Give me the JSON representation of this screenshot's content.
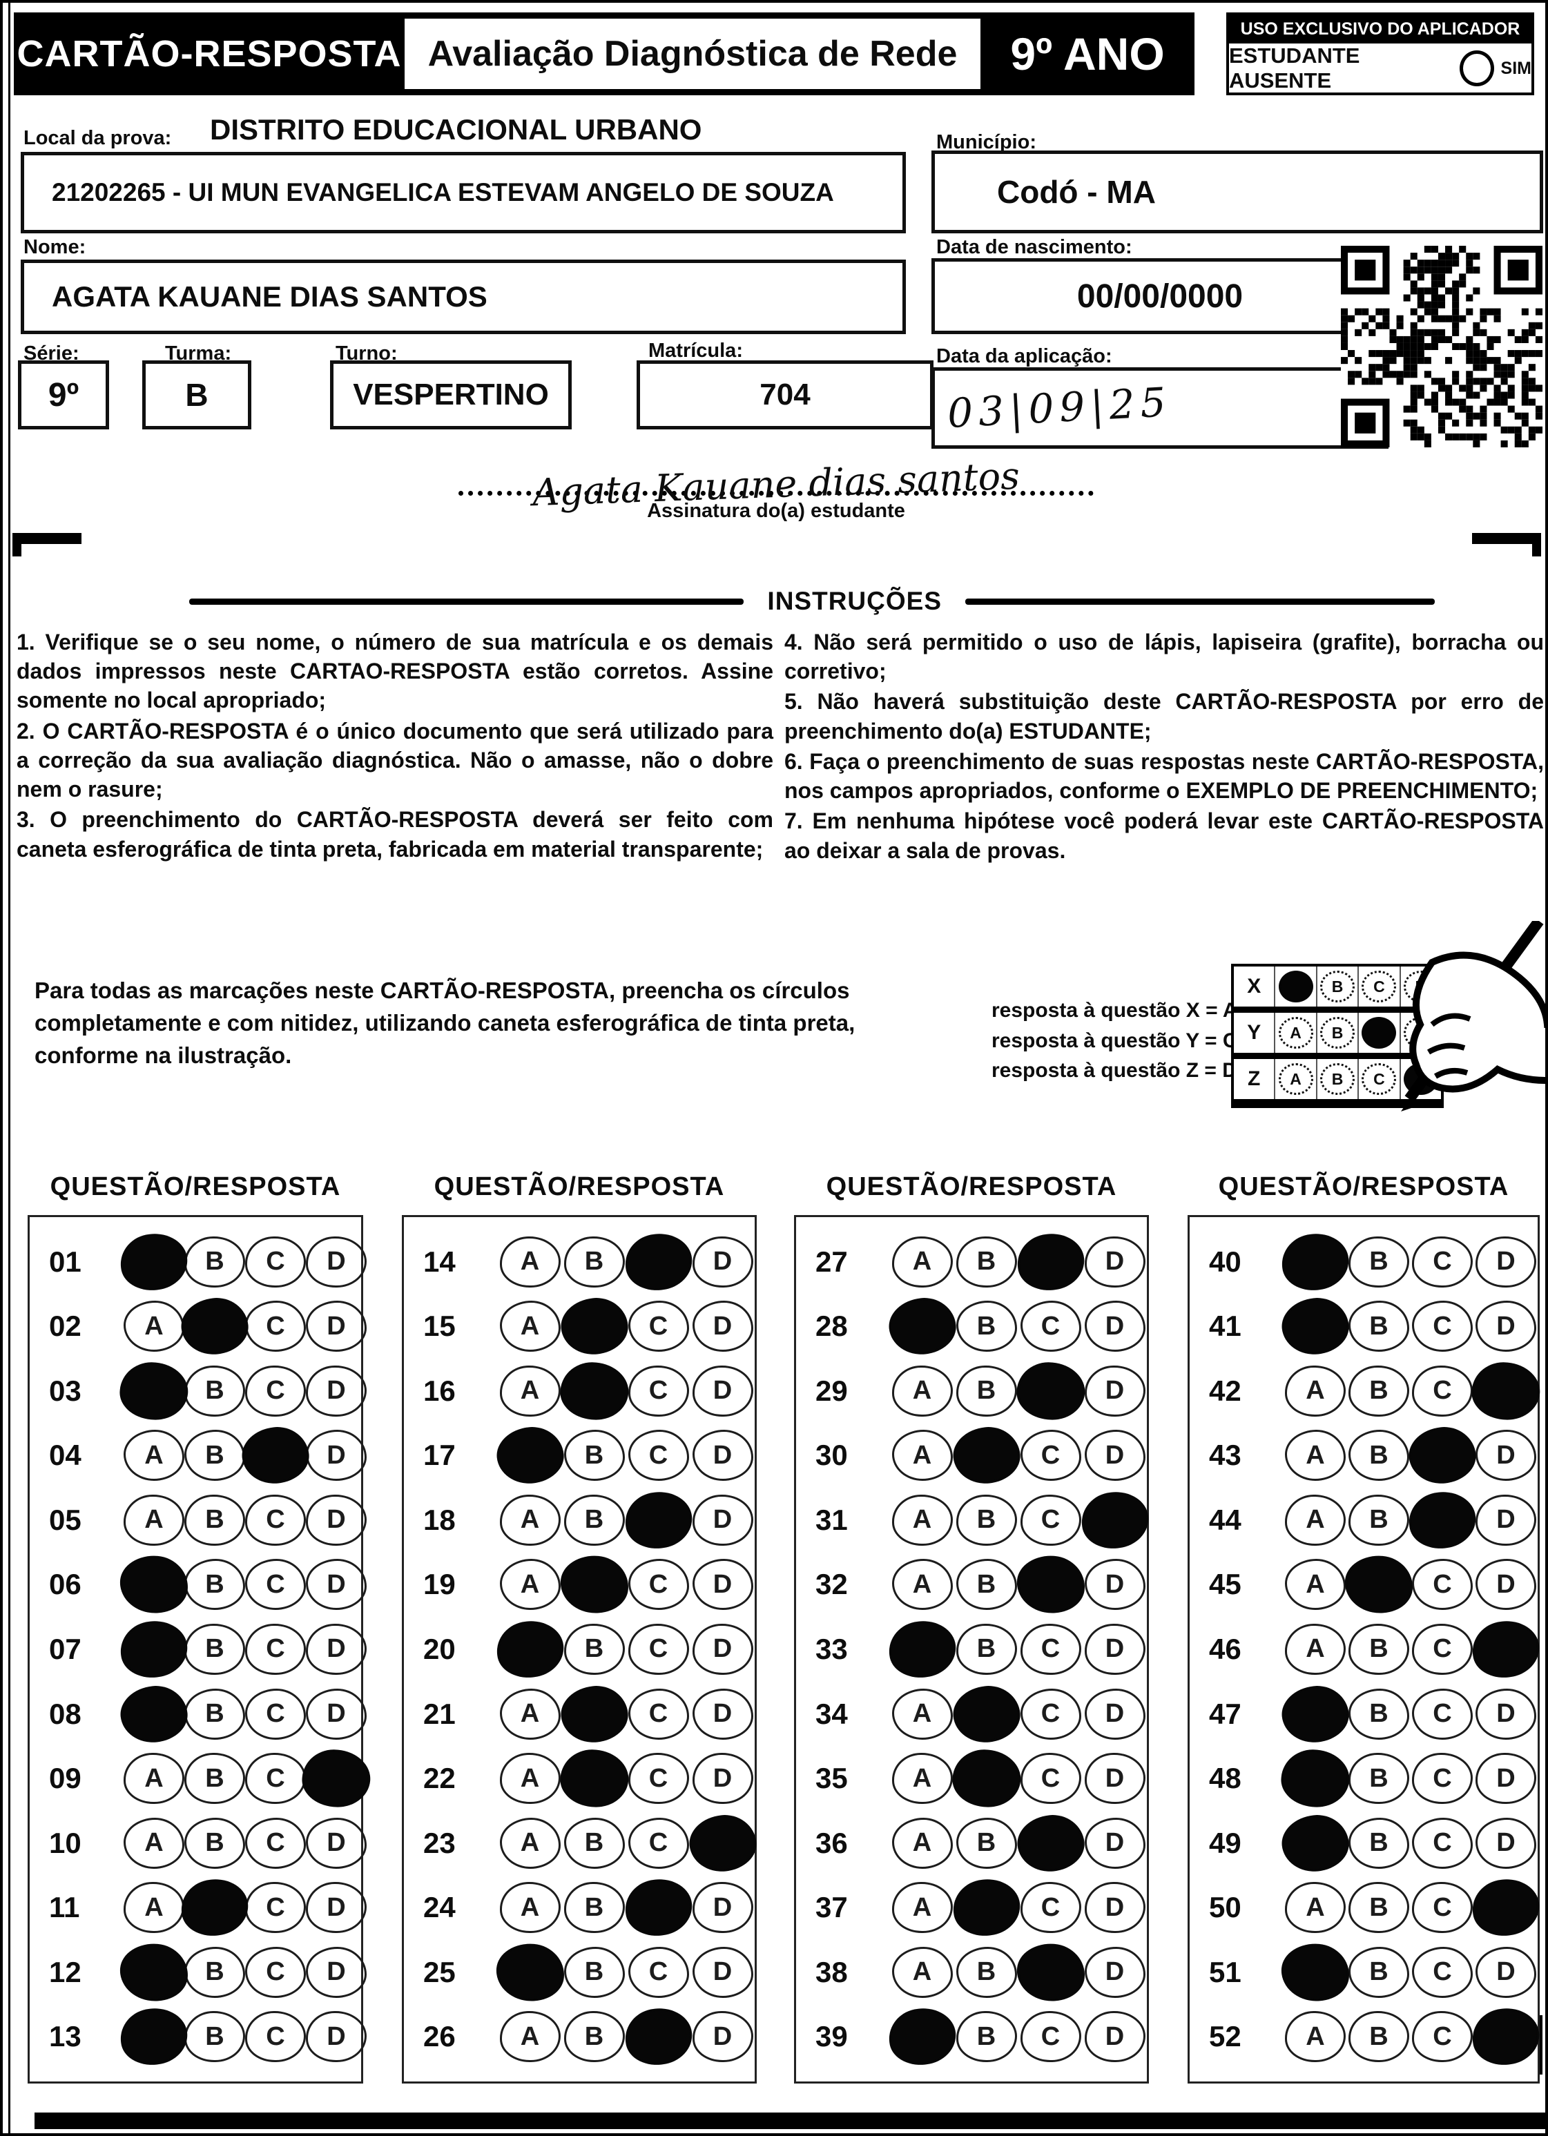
{
  "header": {
    "title": "CARTÃO-RESPOSTA",
    "subtitle": "Avaliação Diagnóstica de Rede",
    "grade": "9º ANO",
    "aplicador_title": "USO EXCLUSIVO DO APLICADOR",
    "absent_label": "ESTUDANTE AUSENTE",
    "absent_option": "SIM"
  },
  "fields": {
    "local_label": "Local da prova:",
    "district": "DISTRITO EDUCACIONAL URBANO",
    "school": "21202265 - UI MUN EVANGELICA ESTEVAM ANGELO DE SOUZA",
    "municipio_label": "Município:",
    "municipio": "Codó - MA",
    "nome_label": "Nome:",
    "nome": "AGATA KAUANE DIAS SANTOS",
    "nascimento_label": "Data de nascimento:",
    "nascimento": "00/00/0000",
    "serie_label": "Série:",
    "serie": "9º",
    "turma_label": "Turma:",
    "turma": "B",
    "turno_label": "Turno:",
    "turno": "VESPERTINO",
    "matricula_label": "Matrícula:",
    "matricula": "704",
    "aplicacao_label": "Data da aplicação:",
    "aplicacao_handwritten": "03|09|25",
    "signature_handwritten": "Agata Kauane dias santos",
    "signature_label": "Assinatura do(a) estudante"
  },
  "instructions": {
    "title": "INSTRUÇÕES",
    "left": [
      "1. Verifique se o seu nome, o número de sua matrícula e os demais dados impressos neste CARTAO-RESPOSTA estão corretos. Assine somente no local apropriado;",
      "2. O CARTÃO-RESPOSTA é o único documento que será utilizado para a correção da sua avaliação diagnóstica. Não o amasse, não o dobre nem o rasure;",
      "3. O preenchimento do CARTÃO-RESPOSTA deverá ser feito com caneta esferográfica de tinta preta, fabricada em material transparente;"
    ],
    "right": [
      "4. Não será permitido o uso de lápis, lapiseira (grafite), borracha ou corretivo;",
      "5. Não haverá substituição deste CARTÃO-RESPOSTA por erro de preenchimento do(a) ESTUDANTE;",
      "6. Faça o preenchimento de suas respostas neste CARTÃO-RESPOSTA, nos campos apropriados, conforme o EXEMPLO DE PREENCHIMENTO;",
      "7. Em nenhuma hipótese você poderá levar este CARTÃO-RESPOSTA ao deixar a sala de provas."
    ]
  },
  "example": {
    "text": "Para todas as marcações neste CARTÃO-RESPOSTA, preencha os círculos completamente e com nitidez, utilizando caneta esferográfica de tinta preta, conforme na ilustração.",
    "legend": [
      "resposta à questão X = A",
      "resposta à questão Y = C",
      "resposta à questão Z = D"
    ],
    "grid": [
      {
        "label": "X",
        "options": [
          "A",
          "B",
          "C",
          "D"
        ],
        "marked": "A"
      },
      {
        "label": "Y",
        "options": [
          "A",
          "B",
          "C",
          "D"
        ],
        "marked": "C"
      },
      {
        "label": "Z",
        "options": [
          "A",
          "B",
          "C",
          "D"
        ],
        "marked": "D"
      }
    ],
    "pen_icon": "pen-in-hand"
  },
  "answers": {
    "column_header": "QUESTÃO/RESPOSTA",
    "options": [
      "A",
      "B",
      "C",
      "D"
    ],
    "columns": [
      {
        "rows": [
          {
            "num": "01",
            "marked": "A"
          },
          {
            "num": "02",
            "marked": "B"
          },
          {
            "num": "03",
            "marked": "A"
          },
          {
            "num": "04",
            "marked": "C"
          },
          {
            "num": "05",
            "marked": ""
          },
          {
            "num": "06",
            "marked": "A"
          },
          {
            "num": "07",
            "marked": "A"
          },
          {
            "num": "08",
            "marked": "A"
          },
          {
            "num": "09",
            "marked": "D"
          },
          {
            "num": "10",
            "marked": ""
          },
          {
            "num": "11",
            "marked": "B"
          },
          {
            "num": "12",
            "marked": "A"
          },
          {
            "num": "13",
            "marked": "A"
          }
        ]
      },
      {
        "rows": [
          {
            "num": "14",
            "marked": "C"
          },
          {
            "num": "15",
            "marked": "B"
          },
          {
            "num": "16",
            "marked": "B"
          },
          {
            "num": "17",
            "marked": "A"
          },
          {
            "num": "18",
            "marked": "C"
          },
          {
            "num": "19",
            "marked": "B"
          },
          {
            "num": "20",
            "marked": "A"
          },
          {
            "num": "21",
            "marked": "B"
          },
          {
            "num": "22",
            "marked": "B"
          },
          {
            "num": "23",
            "marked": "D"
          },
          {
            "num": "24",
            "marked": "C"
          },
          {
            "num": "25",
            "marked": "A"
          },
          {
            "num": "26",
            "marked": "C"
          }
        ]
      },
      {
        "rows": [
          {
            "num": "27",
            "marked": "C"
          },
          {
            "num": "28",
            "marked": "A"
          },
          {
            "num": "29",
            "marked": "C"
          },
          {
            "num": "30",
            "marked": "B"
          },
          {
            "num": "31",
            "marked": "D"
          },
          {
            "num": "32",
            "marked": "C"
          },
          {
            "num": "33",
            "marked": "A"
          },
          {
            "num": "34",
            "marked": "B"
          },
          {
            "num": "35",
            "marked": "B"
          },
          {
            "num": "36",
            "marked": "C"
          },
          {
            "num": "37",
            "marked": "B"
          },
          {
            "num": "38",
            "marked": "C"
          },
          {
            "num": "39",
            "marked": "A"
          }
        ]
      },
      {
        "rows": [
          {
            "num": "40",
            "marked": "A"
          },
          {
            "num": "41",
            "marked": "A"
          },
          {
            "num": "42",
            "marked": "D"
          },
          {
            "num": "43",
            "marked": "C"
          },
          {
            "num": "44",
            "marked": "C"
          },
          {
            "num": "45",
            "marked": "B"
          },
          {
            "num": "46",
            "marked": "D"
          },
          {
            "num": "47",
            "marked": "A"
          },
          {
            "num": "48",
            "marked": "A"
          },
          {
            "num": "49",
            "marked": "A"
          },
          {
            "num": "50",
            "marked": "D"
          },
          {
            "num": "51",
            "marked": "A"
          },
          {
            "num": "52",
            "marked": "D"
          }
        ]
      }
    ]
  },
  "colors": {
    "ink": "#0d0d0d",
    "paper": "#ffffff"
  },
  "icons": {
    "qr": "qr-code",
    "absent_bubble": "radio-circle-icon"
  }
}
